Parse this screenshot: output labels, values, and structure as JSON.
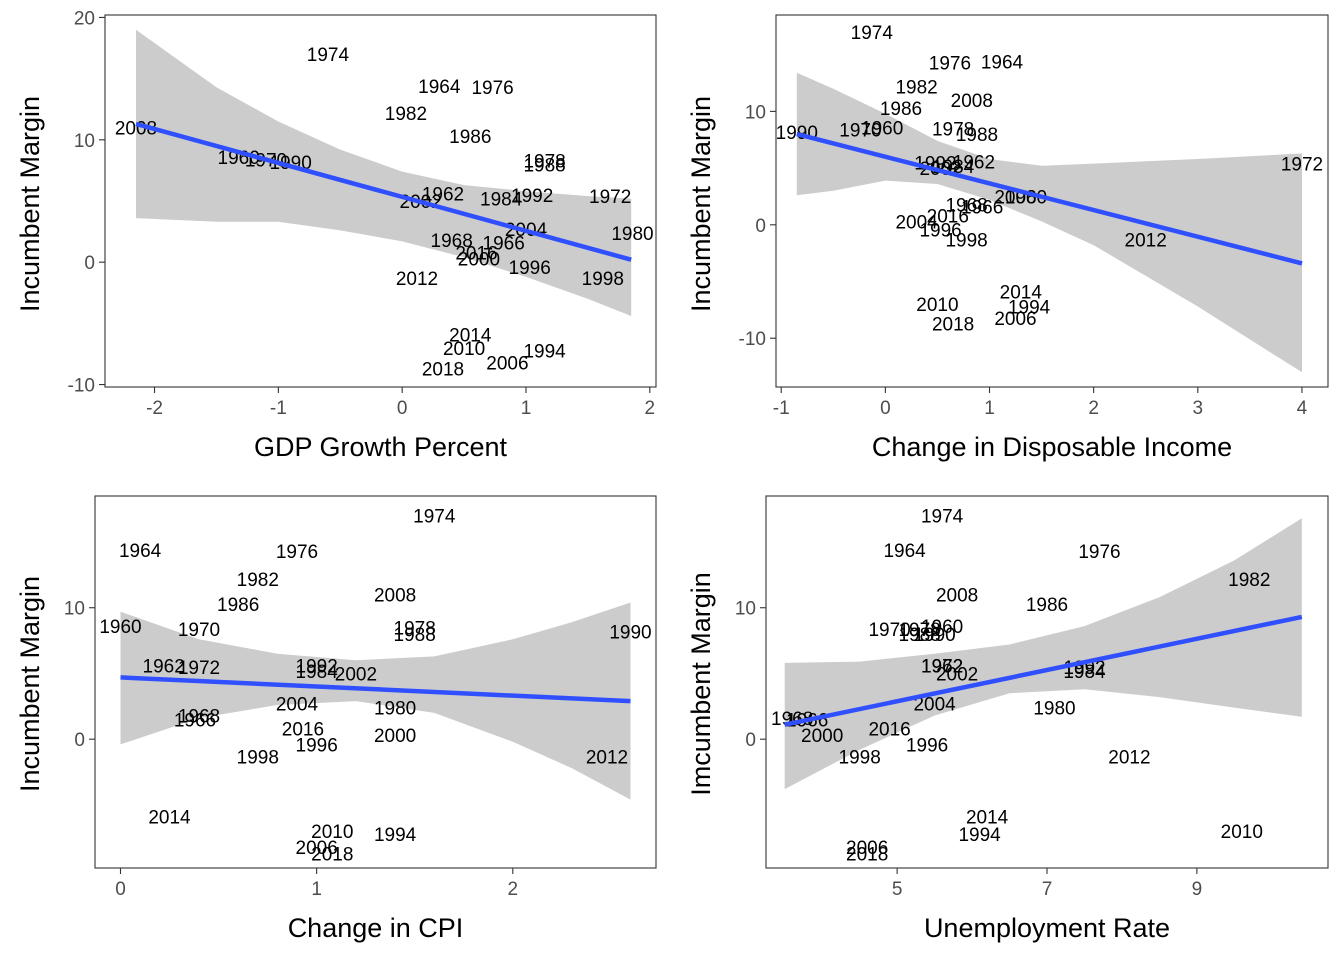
{
  "chart_data": [
    {
      "type": "scatter",
      "xlabel": "GDP Growth Percent",
      "ylabel": "Incumbent Margin",
      "xlim": [
        -2.4,
        2.05
      ],
      "ylim": [
        -10.2,
        20.2
      ],
      "xticks": [
        -2,
        -1,
        0,
        1,
        2
      ],
      "yticks": [
        -10,
        0,
        10,
        20
      ],
      "fit_color": "#3050ff",
      "band_color": "#cccccc",
      "fit": {
        "x": [
          -2.15,
          1.85
        ],
        "y": [
          11.3,
          0.2
        ]
      },
      "band": {
        "x": [
          -2.15,
          -1.5,
          -1.0,
          -0.5,
          0.0,
          0.5,
          1.0,
          1.5,
          1.85
        ],
        "upper": [
          19.0,
          14.3,
          11.5,
          9.2,
          7.4,
          6.3,
          5.8,
          5.4,
          5.2
        ],
        "lower": [
          3.6,
          3.3,
          3.3,
          2.6,
          1.7,
          0.4,
          -1.2,
          -3.0,
          -4.4
        ]
      },
      "points": [
        {
          "label": "1974",
          "x": -0.6,
          "y": 17.0
        },
        {
          "label": "1964",
          "x": 0.3,
          "y": 14.4
        },
        {
          "label": "1976",
          "x": 0.73,
          "y": 14.3
        },
        {
          "label": "1982",
          "x": 0.03,
          "y": 12.2
        },
        {
          "label": "2008",
          "x": -2.15,
          "y": 11.0
        },
        {
          "label": "1986",
          "x": 0.55,
          "y": 10.3
        },
        {
          "label": "1960",
          "x": -1.32,
          "y": 8.6
        },
        {
          "label": "1970",
          "x": -1.1,
          "y": 8.4
        },
        {
          "label": "1990",
          "x": -0.9,
          "y": 8.2
        },
        {
          "label": "1978",
          "x": 1.15,
          "y": 8.3
        },
        {
          "label": "1988",
          "x": 1.15,
          "y": 8.0
        },
        {
          "label": "1962",
          "x": 0.33,
          "y": 5.6
        },
        {
          "label": "2002",
          "x": 0.15,
          "y": 5.0
        },
        {
          "label": "1992",
          "x": 1.05,
          "y": 5.5
        },
        {
          "label": "1984",
          "x": 0.8,
          "y": 5.2
        },
        {
          "label": "1972",
          "x": 1.68,
          "y": 5.4
        },
        {
          "label": "2004",
          "x": 1.0,
          "y": 2.7
        },
        {
          "label": "1968",
          "x": 0.4,
          "y": 1.8
        },
        {
          "label": "1966",
          "x": 0.82,
          "y": 1.6
        },
        {
          "label": "2016",
          "x": 0.6,
          "y": 0.8
        },
        {
          "label": "2000",
          "x": 0.62,
          "y": 0.3
        },
        {
          "label": "1980",
          "x": 1.86,
          "y": 2.4
        },
        {
          "label": "1996",
          "x": 1.03,
          "y": -0.4
        },
        {
          "label": "1998",
          "x": 1.62,
          "y": -1.3
        },
        {
          "label": "2012",
          "x": 0.12,
          "y": -1.3
        },
        {
          "label": "2014",
          "x": 0.55,
          "y": -5.9
        },
        {
          "label": "2010",
          "x": 0.5,
          "y": -7.0
        },
        {
          "label": "1994",
          "x": 1.15,
          "y": -7.2
        },
        {
          "label": "2006",
          "x": 0.85,
          "y": -8.2
        },
        {
          "label": "2018",
          "x": 0.33,
          "y": -8.7
        }
      ]
    },
    {
      "type": "scatter",
      "xlabel": "Change in Disposable Income",
      "ylabel": "Incumbent Margin",
      "xlim": [
        -1.05,
        4.25
      ],
      "ylim": [
        -14.3,
        18.5
      ],
      "xticks": [
        -1,
        0,
        1,
        2,
        3,
        4
      ],
      "yticks": [
        -10,
        0,
        10
      ],
      "fit_color": "#3050ff",
      "band_color": "#cccccc",
      "fit": {
        "x": [
          -0.85,
          4.0
        ],
        "y": [
          8.0,
          -3.4
        ]
      },
      "band": {
        "x": [
          -0.85,
          -0.5,
          0.0,
          0.5,
          1.0,
          1.5,
          2.0,
          3.0,
          4.0
        ],
        "upper": [
          13.4,
          12.0,
          9.8,
          7.4,
          5.8,
          5.2,
          5.4,
          5.8,
          6.3
        ],
        "lower": [
          2.6,
          3.0,
          3.9,
          3.6,
          2.2,
          0.3,
          -1.8,
          -7.2,
          -13.0
        ]
      },
      "points": [
        {
          "label": "1974",
          "x": -0.13,
          "y": 17.0
        },
        {
          "label": "1976",
          "x": 0.62,
          "y": 14.3
        },
        {
          "label": "1964",
          "x": 1.12,
          "y": 14.4
        },
        {
          "label": "1982",
          "x": 0.3,
          "y": 12.2
        },
        {
          "label": "2008",
          "x": 0.83,
          "y": 11.0
        },
        {
          "label": "1986",
          "x": 0.15,
          "y": 10.3
        },
        {
          "label": "1990",
          "x": -0.85,
          "y": 8.2
        },
        {
          "label": "1970",
          "x": -0.24,
          "y": 8.4
        },
        {
          "label": "1960",
          "x": -0.03,
          "y": 8.6
        },
        {
          "label": "1978",
          "x": 0.65,
          "y": 8.5
        },
        {
          "label": "1988",
          "x": 0.88,
          "y": 8.0
        },
        {
          "label": "1972",
          "x": 4.0,
          "y": 5.4
        },
        {
          "label": "1992",
          "x": 0.48,
          "y": 5.5
        },
        {
          "label": "1962",
          "x": 0.85,
          "y": 5.6
        },
        {
          "label": "2002",
          "x": 0.53,
          "y": 5.0
        },
        {
          "label": "1984",
          "x": 0.65,
          "y": 5.2
        },
        {
          "label": "2000",
          "x": 1.25,
          "y": 2.5
        },
        {
          "label": "1980",
          "x": 1.35,
          "y": 2.5
        },
        {
          "label": "1968",
          "x": 0.78,
          "y": 1.8
        },
        {
          "label": "1966",
          "x": 0.93,
          "y": 1.6
        },
        {
          "label": "2016",
          "x": 0.6,
          "y": 0.8
        },
        {
          "label": "2004",
          "x": 0.3,
          "y": 0.3
        },
        {
          "label": "1996",
          "x": 0.53,
          "y": -0.4
        },
        {
          "label": "1998",
          "x": 0.78,
          "y": -1.3
        },
        {
          "label": "2012",
          "x": 2.5,
          "y": -1.3
        },
        {
          "label": "2014",
          "x": 1.3,
          "y": -5.9
        },
        {
          "label": "1994",
          "x": 1.38,
          "y": -7.2
        },
        {
          "label": "2010",
          "x": 0.5,
          "y": -7.0
        },
        {
          "label": "2006",
          "x": 1.25,
          "y": -8.2
        },
        {
          "label": "2018",
          "x": 0.65,
          "y": -8.7
        }
      ]
    },
    {
      "type": "scatter",
      "xlabel": "Change in CPI",
      "ylabel": "Incumbent Margin",
      "xlim": [
        -0.13,
        2.73
      ],
      "ylim": [
        -9.8,
        18.5
      ],
      "xticks": [
        0,
        1,
        2
      ],
      "yticks": [
        0,
        10
      ],
      "fit_color": "#3050ff",
      "band_color": "#cccccc",
      "fit": {
        "x": [
          0.0,
          2.6
        ],
        "y": [
          4.7,
          2.9
        ]
      },
      "band": {
        "x": [
          0.0,
          0.4,
          0.8,
          1.2,
          1.6,
          2.0,
          2.3,
          2.6
        ],
        "upper": [
          9.7,
          7.6,
          6.5,
          6.0,
          6.3,
          7.6,
          8.9,
          10.4
        ],
        "lower": [
          -0.4,
          1.6,
          2.6,
          2.9,
          2.0,
          -0.2,
          -2.2,
          -4.6
        ]
      },
      "points": [
        {
          "label": "1974",
          "x": 1.6,
          "y": 17.0
        },
        {
          "label": "1964",
          "x": 0.1,
          "y": 14.4
        },
        {
          "label": "1976",
          "x": 0.9,
          "y": 14.3
        },
        {
          "label": "1982",
          "x": 0.7,
          "y": 12.2
        },
        {
          "label": "2008",
          "x": 1.4,
          "y": 11.0
        },
        {
          "label": "1986",
          "x": 0.6,
          "y": 10.3
        },
        {
          "label": "1960",
          "x": 0.0,
          "y": 8.6
        },
        {
          "label": "1970",
          "x": 0.4,
          "y": 8.4
        },
        {
          "label": "1978",
          "x": 1.5,
          "y": 8.5
        },
        {
          "label": "1988",
          "x": 1.5,
          "y": 8.0
        },
        {
          "label": "1990",
          "x": 2.6,
          "y": 8.2
        },
        {
          "label": "1962",
          "x": 0.22,
          "y": 5.6
        },
        {
          "label": "1972",
          "x": 0.4,
          "y": 5.5
        },
        {
          "label": "1992",
          "x": 1.0,
          "y": 5.6
        },
        {
          "label": "1984",
          "x": 1.0,
          "y": 5.2
        },
        {
          "label": "2002",
          "x": 1.2,
          "y": 5.0
        },
        {
          "label": "2004",
          "x": 0.9,
          "y": 2.7
        },
        {
          "label": "1980",
          "x": 1.4,
          "y": 2.4
        },
        {
          "label": "1968",
          "x": 0.4,
          "y": 1.8
        },
        {
          "label": "1966",
          "x": 0.38,
          "y": 1.5
        },
        {
          "label": "2016",
          "x": 0.93,
          "y": 0.8
        },
        {
          "label": "2000",
          "x": 1.4,
          "y": 0.3
        },
        {
          "label": "1996",
          "x": 1.0,
          "y": -0.4
        },
        {
          "label": "1998",
          "x": 0.7,
          "y": -1.3
        },
        {
          "label": "2012",
          "x": 2.48,
          "y": -1.3
        },
        {
          "label": "2014",
          "x": 0.25,
          "y": -5.9
        },
        {
          "label": "2010",
          "x": 1.08,
          "y": -7.0
        },
        {
          "label": "1994",
          "x": 1.4,
          "y": -7.2
        },
        {
          "label": "2006",
          "x": 1.0,
          "y": -8.2
        },
        {
          "label": "2018",
          "x": 1.08,
          "y": -8.7
        }
      ]
    },
    {
      "type": "scatter",
      "xlabel": "Unemployment Rate",
      "ylabel": "Imcumbent Margin",
      "xlim": [
        3.25,
        10.75
      ],
      "ylim": [
        -9.8,
        18.5
      ],
      "xticks": [
        5,
        7,
        9
      ],
      "yticks": [
        0,
        10
      ],
      "fit_color": "#3050ff",
      "band_color": "#cccccc",
      "fit": {
        "x": [
          3.5,
          10.4
        ],
        "y": [
          1.1,
          9.3
        ]
      },
      "band": {
        "x": [
          3.5,
          4.5,
          5.5,
          6.5,
          7.5,
          8.5,
          9.5,
          10.4
        ],
        "upper": [
          5.8,
          5.9,
          6.5,
          7.2,
          8.6,
          10.8,
          13.6,
          16.8
        ],
        "lower": [
          -3.8,
          -0.8,
          1.8,
          3.5,
          3.8,
          3.2,
          2.4,
          1.7
        ]
      },
      "points": [
        {
          "label": "1974",
          "x": 5.6,
          "y": 17.0
        },
        {
          "label": "1964",
          "x": 5.1,
          "y": 14.4
        },
        {
          "label": "1976",
          "x": 7.7,
          "y": 14.3
        },
        {
          "label": "1982",
          "x": 9.7,
          "y": 12.2
        },
        {
          "label": "2008",
          "x": 5.8,
          "y": 11.0
        },
        {
          "label": "1986",
          "x": 7.0,
          "y": 10.3
        },
        {
          "label": "1970",
          "x": 4.9,
          "y": 8.4
        },
        {
          "label": "1978",
          "x": 5.3,
          "y": 8.4
        },
        {
          "label": "1960",
          "x": 5.6,
          "y": 8.6
        },
        {
          "label": "1988",
          "x": 5.3,
          "y": 8.0
        },
        {
          "label": "1990",
          "x": 5.5,
          "y": 8.0
        },
        {
          "label": "1962",
          "x": 5.6,
          "y": 5.6
        },
        {
          "label": "1972",
          "x": 5.6,
          "y": 5.6
        },
        {
          "label": "2002",
          "x": 5.8,
          "y": 5.0
        },
        {
          "label": "1992",
          "x": 7.5,
          "y": 5.5
        },
        {
          "label": "1984",
          "x": 7.5,
          "y": 5.2
        },
        {
          "label": "2004",
          "x": 5.5,
          "y": 2.7
        },
        {
          "label": "1980",
          "x": 7.1,
          "y": 2.4
        },
        {
          "label": "1968",
          "x": 3.6,
          "y": 1.6
        },
        {
          "label": "1966",
          "x": 3.8,
          "y": 1.5
        },
        {
          "label": "2016",
          "x": 4.9,
          "y": 0.8
        },
        {
          "label": "2000",
          "x": 4.0,
          "y": 0.3
        },
        {
          "label": "1996",
          "x": 5.4,
          "y": -0.4
        },
        {
          "label": "1998",
          "x": 4.5,
          "y": -1.3
        },
        {
          "label": "2012",
          "x": 8.1,
          "y": -1.3
        },
        {
          "label": "2014",
          "x": 6.2,
          "y": -5.9
        },
        {
          "label": "1994",
          "x": 6.1,
          "y": -7.2
        },
        {
          "label": "2010",
          "x": 9.6,
          "y": -7.0
        },
        {
          "label": "2006",
          "x": 4.6,
          "y": -8.2
        },
        {
          "label": "2018",
          "x": 4.6,
          "y": -8.7
        }
      ]
    }
  ]
}
